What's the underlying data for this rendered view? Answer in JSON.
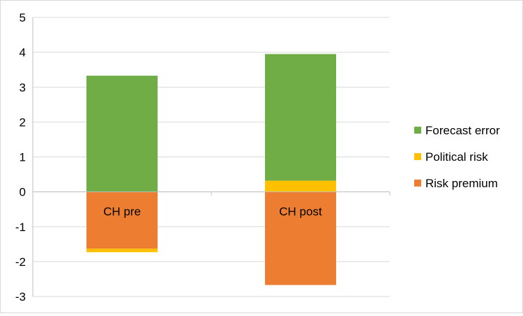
{
  "chart_data": {
    "type": "bar",
    "stacked": true,
    "categories": [
      "CH pre",
      "CH post"
    ],
    "series": [
      {
        "name": "Risk premium",
        "values": [
          -1.63,
          -2.67
        ],
        "color": "#ED7D31"
      },
      {
        "name": "Political risk",
        "values": [
          -0.1,
          0.32
        ],
        "color": "#FFC000"
      },
      {
        "name": "Forecast error",
        "values": [
          3.33,
          3.63
        ],
        "color": "#70AD47"
      }
    ],
    "legend_order": [
      "Forecast error",
      "Political risk",
      "Risk premium"
    ],
    "ylim": [
      -3,
      5
    ],
    "yticks": [
      "5",
      "4",
      "3",
      "2",
      "1",
      "0",
      "-1",
      "-2",
      "-3"
    ],
    "grid": true,
    "legend_position": "right",
    "title": "",
    "xlabel": "",
    "ylabel": ""
  }
}
